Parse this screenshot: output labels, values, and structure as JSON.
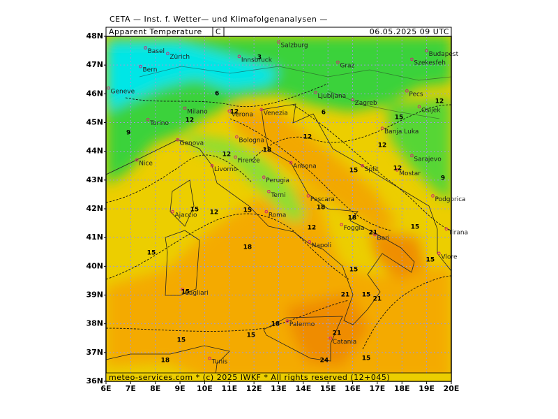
{
  "header": {
    "institute": "CETA — Inst. f. Wetter— und Klimafolgenanalysen —",
    "variable": "Apparent Temperature",
    "unit": "C",
    "valid_time": "06.05.2025 09 UTC",
    "footer": "meteo-services.com * (c) 2025 IWKF * All rights reserved (12+045)"
  },
  "map": {
    "lon_range": [
      6,
      20
    ],
    "lat_range": [
      36,
      48
    ],
    "grid": true,
    "lon_ticks": [
      {
        "value": 6,
        "label": "6E"
      },
      {
        "value": 7,
        "label": "7E"
      },
      {
        "value": 8,
        "label": "8E"
      },
      {
        "value": 9,
        "label": "9E"
      },
      {
        "value": 10,
        "label": "10E"
      },
      {
        "value": 11,
        "label": "11E"
      },
      {
        "value": 12,
        "label": "12E"
      },
      {
        "value": 13,
        "label": "13E"
      },
      {
        "value": 14,
        "label": "14E"
      },
      {
        "value": 15,
        "label": "15E"
      },
      {
        "value": 16,
        "label": "16E"
      },
      {
        "value": 17,
        "label": "17E"
      },
      {
        "value": 18,
        "label": "18E"
      },
      {
        "value": 19,
        "label": "19E"
      },
      {
        "value": 20,
        "label": "20E"
      }
    ],
    "lat_ticks": [
      {
        "value": 36,
        "label": "36N"
      },
      {
        "value": 37,
        "label": "37N"
      },
      {
        "value": 38,
        "label": "38N"
      },
      {
        "value": 39,
        "label": "39N"
      },
      {
        "value": 40,
        "label": "40N"
      },
      {
        "value": 41,
        "label": "41N"
      },
      {
        "value": 42,
        "label": "42N"
      },
      {
        "value": 43,
        "label": "43N"
      },
      {
        "value": 44,
        "label": "44N"
      },
      {
        "value": 45,
        "label": "45N"
      },
      {
        "value": 46,
        "label": "46N"
      },
      {
        "value": 47,
        "label": "47N"
      },
      {
        "value": 48,
        "label": "48N"
      }
    ],
    "cities": [
      {
        "name": "Basel",
        "lon": 7.6,
        "lat": 47.6
      },
      {
        "name": "Zürich",
        "lon": 8.5,
        "lat": 47.4
      },
      {
        "name": "Bern",
        "lon": 7.4,
        "lat": 46.95
      },
      {
        "name": "Geneve",
        "lon": 6.1,
        "lat": 46.2
      },
      {
        "name": "Innsbruck",
        "lon": 11.4,
        "lat": 47.3
      },
      {
        "name": "Salzburg",
        "lon": 13.0,
        "lat": 47.8
      },
      {
        "name": "Graz",
        "lon": 15.4,
        "lat": 47.1
      },
      {
        "name": "Budapest",
        "lon": 19.0,
        "lat": 47.5
      },
      {
        "name": "Szekesfeh",
        "lon": 18.4,
        "lat": 47.2
      },
      {
        "name": "Ljubljana",
        "lon": 14.5,
        "lat": 46.05
      },
      {
        "name": "Zagreb",
        "lon": 16.0,
        "lat": 45.8
      },
      {
        "name": "Pecs",
        "lon": 18.2,
        "lat": 46.1
      },
      {
        "name": "Osijek",
        "lon": 18.7,
        "lat": 45.55
      },
      {
        "name": "Banja Luka",
        "lon": 17.2,
        "lat": 44.8
      },
      {
        "name": "Sarajevo",
        "lon": 18.4,
        "lat": 43.85
      },
      {
        "name": "Mostar",
        "lon": 17.8,
        "lat": 43.35
      },
      {
        "name": "Split",
        "lon": 16.4,
        "lat": 43.5
      },
      {
        "name": "Venezia",
        "lon": 12.3,
        "lat": 45.45
      },
      {
        "name": "Milano",
        "lon": 9.2,
        "lat": 45.5
      },
      {
        "name": "Torino",
        "lon": 7.7,
        "lat": 45.1
      },
      {
        "name": "Genova",
        "lon": 8.9,
        "lat": 44.4
      },
      {
        "name": "Bologna",
        "lon": 11.3,
        "lat": 44.5
      },
      {
        "name": "Verona",
        "lon": 11.0,
        "lat": 45.4
      },
      {
        "name": "Firenze",
        "lon": 11.25,
        "lat": 43.8
      },
      {
        "name": "Livorno",
        "lon": 10.3,
        "lat": 43.5
      },
      {
        "name": "Perugia",
        "lon": 12.4,
        "lat": 43.1
      },
      {
        "name": "Ancona",
        "lon": 13.5,
        "lat": 43.6
      },
      {
        "name": "Terni",
        "lon": 12.6,
        "lat": 42.6
      },
      {
        "name": "Pescara",
        "lon": 14.2,
        "lat": 42.45
      },
      {
        "name": "Roma",
        "lon": 12.5,
        "lat": 41.9
      },
      {
        "name": "Napoli",
        "lon": 14.25,
        "lat": 40.85
      },
      {
        "name": "Foggia",
        "lon": 15.55,
        "lat": 41.45
      },
      {
        "name": "Bari",
        "lon": 16.9,
        "lat": 41.1
      },
      {
        "name": "Vlore",
        "lon": 19.5,
        "lat": 40.45
      },
      {
        "name": "Tirana",
        "lon": 19.8,
        "lat": 41.3
      },
      {
        "name": "Podgorica",
        "lon": 19.25,
        "lat": 42.45
      },
      {
        "name": "Cagliari",
        "lon": 9.1,
        "lat": 39.2
      },
      {
        "name": "Palermo",
        "lon": 13.35,
        "lat": 38.1
      },
      {
        "name": "Catania",
        "lon": 15.1,
        "lat": 37.5
      },
      {
        "name": "Tunis",
        "lon": 10.2,
        "lat": 36.8
      },
      {
        "name": "Nice",
        "lon": 7.25,
        "lat": 43.7
      },
      {
        "name": "Ajaccio",
        "lon": 8.7,
        "lat": 41.9
      }
    ],
    "contour_labels": [
      {
        "value": 15,
        "lon": 7.84,
        "lat": 40.47
      },
      {
        "value": 18,
        "lon": 11.74,
        "lat": 40.66
      },
      {
        "value": 15,
        "lon": 11.74,
        "lat": 41.95
      },
      {
        "value": 12,
        "lon": 10.38,
        "lat": 41.88
      },
      {
        "value": 15,
        "lon": 9.59,
        "lat": 41.98
      },
      {
        "value": 12,
        "lon": 10.89,
        "lat": 43.89
      },
      {
        "value": 18,
        "lon": 12.53,
        "lat": 44.04
      },
      {
        "value": 18,
        "lon": 14.71,
        "lat": 42.05
      },
      {
        "value": 12,
        "lon": 14.34,
        "lat": 41.34
      },
      {
        "value": 18,
        "lon": 15.98,
        "lat": 41.68
      },
      {
        "value": 21,
        "lon": 16.83,
        "lat": 41.17
      },
      {
        "value": 15,
        "lon": 16.04,
        "lat": 39.89
      },
      {
        "value": 21,
        "lon": 15.7,
        "lat": 39.01
      },
      {
        "value": 15,
        "lon": 16.55,
        "lat": 39.01
      },
      {
        "value": 21,
        "lon": 17.0,
        "lat": 38.87
      },
      {
        "value": 21,
        "lon": 15.36,
        "lat": 37.68
      },
      {
        "value": 24,
        "lon": 14.85,
        "lat": 36.73
      },
      {
        "value": 18,
        "lon": 12.87,
        "lat": 37.99
      },
      {
        "value": 15,
        "lon": 11.88,
        "lat": 37.6
      },
      {
        "value": 15,
        "lon": 9.05,
        "lat": 37.43
      },
      {
        "value": 18,
        "lon": 8.4,
        "lat": 36.73
      },
      {
        "value": 15,
        "lon": 16.55,
        "lat": 36.8
      },
      {
        "value": 15,
        "lon": 9.22,
        "lat": 39.11
      },
      {
        "value": 12,
        "lon": 14.17,
        "lat": 44.5
      },
      {
        "value": 12,
        "lon": 17.2,
        "lat": 44.21
      },
      {
        "value": 15,
        "lon": 16.04,
        "lat": 43.34
      },
      {
        "value": 12,
        "lon": 17.82,
        "lat": 43.41
      },
      {
        "value": 9,
        "lon": 19.66,
        "lat": 43.07
      },
      {
        "value": 15,
        "lon": 17.88,
        "lat": 45.18
      },
      {
        "value": 12,
        "lon": 19.52,
        "lat": 45.74
      },
      {
        "value": 12,
        "lon": 11.2,
        "lat": 45.38
      },
      {
        "value": 12,
        "lon": 9.39,
        "lat": 45.09
      },
      {
        "value": 9,
        "lon": 6.91,
        "lat": 44.65
      },
      {
        "value": 6,
        "lon": 10.5,
        "lat": 46.01
      },
      {
        "value": 3,
        "lon": 12.22,
        "lat": 47.27
      },
      {
        "value": 6,
        "lon": 14.82,
        "lat": 45.35
      },
      {
        "value": 15,
        "lon": 18.53,
        "lat": 41.37
      },
      {
        "value": 15,
        "lon": 19.15,
        "lat": 40.23
      }
    ]
  }
}
